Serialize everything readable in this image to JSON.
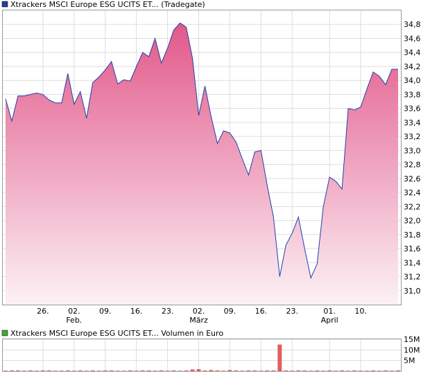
{
  "chart_data": [
    {
      "type": "area",
      "legend_label": "Xtrackers MSCI Europe ESG UCITS ET... (Tradegate)",
      "legend_color": "#1f3fa8",
      "line_color": "#1f3fa8",
      "fill_top": "#e2588a",
      "fill_bottom": "#fcf1f5",
      "grid": true,
      "ylim": [
        30.8,
        35.0
      ],
      "ytick_labels": [
        "31,0",
        "31,2",
        "31,4",
        "31,6",
        "31,8",
        "32,0",
        "32,2",
        "32,4",
        "32,6",
        "32,8",
        "33,0",
        "33,2",
        "33,4",
        "33,6",
        "33,8",
        "34,0",
        "34,2",
        "34,4",
        "34,6",
        "34,8"
      ],
      "ytick_values": [
        31.0,
        31.2,
        31.4,
        31.6,
        31.8,
        32.0,
        32.2,
        32.4,
        32.6,
        32.8,
        33.0,
        33.2,
        33.4,
        33.6,
        33.8,
        34.0,
        34.2,
        34.4,
        34.6,
        34.8
      ],
      "xtick_labels": [
        "26.",
        "02.",
        "09.",
        "16.",
        "23.",
        "02.",
        "09.",
        "16.",
        "23.",
        "01.",
        "10."
      ],
      "xtick_values": [
        6,
        11,
        16,
        21,
        26,
        31,
        36,
        41,
        46,
        52,
        57
      ],
      "month_labels": [
        "Feb.",
        "März",
        "April"
      ],
      "month_values": [
        11,
        31,
        52
      ],
      "xlim": [
        0,
        63
      ],
      "x": [
        0,
        1,
        2,
        3,
        4,
        5,
        6,
        7,
        8,
        9,
        10,
        11,
        12,
        13,
        14,
        15,
        16,
        17,
        18,
        19,
        20,
        21,
        22,
        23,
        24,
        25,
        26,
        27,
        28,
        29,
        30,
        31,
        32,
        33,
        34,
        35,
        36,
        37,
        38,
        39,
        40,
        41,
        42,
        43,
        44,
        45,
        46,
        47,
        48,
        49,
        50,
        51,
        52,
        53,
        54,
        55,
        56,
        57,
        58,
        59,
        60,
        61,
        62,
        63
      ],
      "y": [
        33.74,
        33.42,
        33.78,
        33.78,
        33.8,
        33.82,
        33.8,
        33.72,
        33.68,
        33.68,
        34.1,
        33.66,
        33.84,
        33.46,
        33.97,
        34.05,
        34.15,
        34.27,
        33.95,
        34.01,
        33.99,
        34.2,
        34.4,
        34.34,
        34.6,
        34.25,
        34.46,
        34.72,
        34.82,
        34.76,
        34.32,
        33.5,
        33.92,
        33.48,
        33.1,
        33.28,
        33.25,
        33.12,
        32.88,
        32.65,
        32.98,
        33.0,
        32.5,
        32.05,
        31.2,
        31.65,
        31.82,
        32.05,
        31.6,
        31.18,
        31.38,
        32.2,
        32.62,
        32.56,
        32.45,
        33.6,
        33.58,
        33.62,
        33.88,
        34.12,
        34.06,
        33.94,
        34.16,
        34.16
      ]
    },
    {
      "type": "bar",
      "legend_label": "Xtrackers MSCI Europe ESG UCITS ET... Volumen in Euro",
      "legend_color": "#3fa83f",
      "bar_color": "#e06060",
      "grid": true,
      "ylim": [
        0,
        15
      ],
      "unit": "M",
      "ytick_labels": [
        "5M",
        "10M",
        "15M"
      ],
      "ytick_values": [
        5,
        10,
        15
      ],
      "x": [
        0,
        1,
        2,
        3,
        4,
        5,
        6,
        7,
        8,
        9,
        10,
        11,
        12,
        13,
        14,
        15,
        16,
        17,
        18,
        19,
        20,
        21,
        22,
        23,
        24,
        25,
        26,
        27,
        28,
        29,
        30,
        31,
        32,
        33,
        34,
        35,
        36,
        37,
        38,
        39,
        40,
        41,
        42,
        43,
        44,
        45,
        46,
        47,
        48,
        49,
        50,
        51,
        52,
        53,
        54,
        55,
        56,
        57,
        58,
        59,
        60,
        61,
        62,
        63
      ],
      "values": [
        0.2,
        0.3,
        0.3,
        0.2,
        0.3,
        0.2,
        0.3,
        0.3,
        0.2,
        0.2,
        0.3,
        0.2,
        0.3,
        0.2,
        0.3,
        0.2,
        0.3,
        0.3,
        0.2,
        0.2,
        0.3,
        0.2,
        0.3,
        0.3,
        0.2,
        0.3,
        0.2,
        0.3,
        0.2,
        0.3,
        0.8,
        0.9,
        0.3,
        0.5,
        0.3,
        0.2,
        0.5,
        0.3,
        0.2,
        0.3,
        0.3,
        0.2,
        0.3,
        0.3,
        12.5,
        0.3,
        0.2,
        0.3,
        0.3,
        0.2,
        0.3,
        0.2,
        0.3,
        0.2,
        0.3,
        0.2,
        0.3,
        0.2,
        0.2,
        0.3,
        0.2,
        0.3,
        0.2,
        0.3
      ]
    }
  ]
}
